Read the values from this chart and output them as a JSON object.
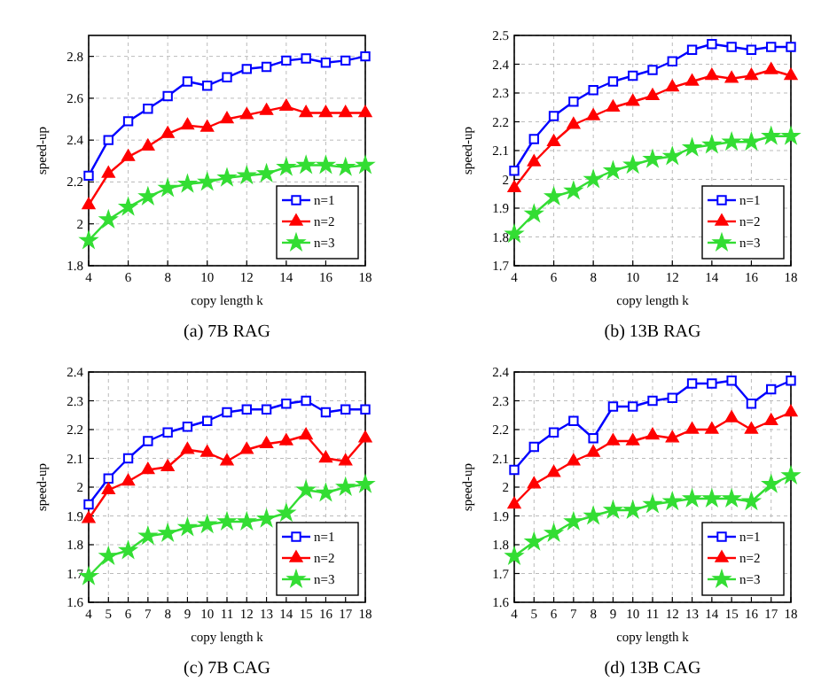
{
  "chart_data": [
    {
      "type": "line",
      "title": "(a) 7B RAG",
      "xlabel": "copy length k",
      "ylabel": "speed-up",
      "x": [
        4,
        5,
        6,
        7,
        8,
        9,
        10,
        11,
        12,
        13,
        14,
        15,
        16,
        17,
        18
      ],
      "xlim": [
        4,
        18
      ],
      "xticks": [
        4,
        6,
        8,
        10,
        12,
        14,
        16,
        18
      ],
      "ylim": [
        1.8,
        2.9
      ],
      "yticks": [
        1.8,
        2,
        2.2,
        2.4,
        2.6,
        2.8
      ],
      "grid": true,
      "legend": "bottom right",
      "series": [
        {
          "name": "n=1",
          "color": "#0000ff",
          "marker": "square",
          "values": [
            2.23,
            2.4,
            2.49,
            2.55,
            2.61,
            2.68,
            2.66,
            2.7,
            2.74,
            2.75,
            2.78,
            2.79,
            2.77,
            2.78,
            2.8
          ]
        },
        {
          "name": "n=2",
          "color": "#ff0000",
          "marker": "triangle",
          "values": [
            2.09,
            2.24,
            2.32,
            2.37,
            2.43,
            2.47,
            2.46,
            2.5,
            2.52,
            2.54,
            2.56,
            2.53,
            2.53,
            2.53,
            2.53
          ]
        },
        {
          "name": "n=3",
          "color": "#33dd33",
          "marker": "star",
          "values": [
            1.92,
            2.02,
            2.08,
            2.13,
            2.17,
            2.19,
            2.2,
            2.22,
            2.23,
            2.24,
            2.27,
            2.28,
            2.28,
            2.27,
            2.28
          ]
        }
      ]
    },
    {
      "type": "line",
      "title": "(b) 13B RAG",
      "xlabel": "copy length k",
      "ylabel": "speed-up",
      "x": [
        4,
        5,
        6,
        7,
        8,
        9,
        10,
        11,
        12,
        13,
        14,
        15,
        16,
        17,
        18
      ],
      "xlim": [
        4,
        18
      ],
      "xticks": [
        4,
        6,
        8,
        10,
        12,
        14,
        16,
        18
      ],
      "ylim": [
        1.7,
        2.5
      ],
      "yticks": [
        1.7,
        1.8,
        1.9,
        2,
        2.1,
        2.2,
        2.3,
        2.4,
        2.5
      ],
      "grid": true,
      "legend": "bottom right",
      "series": [
        {
          "name": "n=1",
          "color": "#0000ff",
          "marker": "square",
          "values": [
            2.03,
            2.14,
            2.22,
            2.27,
            2.31,
            2.34,
            2.36,
            2.38,
            2.41,
            2.45,
            2.47,
            2.46,
            2.45,
            2.46,
            2.46
          ]
        },
        {
          "name": "n=2",
          "color": "#ff0000",
          "marker": "triangle",
          "values": [
            1.97,
            2.06,
            2.13,
            2.19,
            2.22,
            2.25,
            2.27,
            2.29,
            2.32,
            2.34,
            2.36,
            2.35,
            2.36,
            2.38,
            2.36
          ]
        },
        {
          "name": "n=3",
          "color": "#33dd33",
          "marker": "star",
          "values": [
            1.81,
            1.88,
            1.94,
            1.96,
            2.0,
            2.03,
            2.05,
            2.07,
            2.08,
            2.11,
            2.12,
            2.13,
            2.13,
            2.15,
            2.15
          ]
        }
      ]
    },
    {
      "type": "line",
      "title": "(c) 7B CAG",
      "xlabel": "copy length k",
      "ylabel": "speed-up",
      "x": [
        4,
        5,
        6,
        7,
        8,
        9,
        10,
        11,
        12,
        13,
        14,
        15,
        16,
        17,
        18
      ],
      "xlim": [
        4,
        18
      ],
      "xticks": [
        4,
        5,
        6,
        7,
        8,
        9,
        10,
        11,
        12,
        13,
        14,
        15,
        16,
        17,
        18
      ],
      "ylim": [
        1.6,
        2.4
      ],
      "yticks": [
        1.6,
        1.7,
        1.8,
        1.9,
        2,
        2.1,
        2.2,
        2.3,
        2.4
      ],
      "grid": true,
      "legend": "bottom right",
      "series": [
        {
          "name": "n=1",
          "color": "#0000ff",
          "marker": "square",
          "values": [
            1.94,
            2.03,
            2.1,
            2.16,
            2.19,
            2.21,
            2.23,
            2.26,
            2.27,
            2.27,
            2.29,
            2.3,
            2.26,
            2.27,
            2.27
          ]
        },
        {
          "name": "n=2",
          "color": "#ff0000",
          "marker": "triangle",
          "values": [
            1.89,
            1.99,
            2.02,
            2.06,
            2.07,
            2.13,
            2.12,
            2.09,
            2.13,
            2.15,
            2.16,
            2.18,
            2.1,
            2.09,
            2.17
          ]
        },
        {
          "name": "n=3",
          "color": "#33dd33",
          "marker": "star",
          "values": [
            1.69,
            1.76,
            1.78,
            1.83,
            1.84,
            1.86,
            1.87,
            1.88,
            1.88,
            1.89,
            1.91,
            1.99,
            1.98,
            2.0,
            2.01
          ]
        }
      ]
    },
    {
      "type": "line",
      "title": "(d) 13B CAG",
      "xlabel": "copy length k",
      "ylabel": "speed-up",
      "x": [
        4,
        5,
        6,
        7,
        8,
        9,
        10,
        11,
        12,
        13,
        14,
        15,
        16,
        17,
        18
      ],
      "xlim": [
        4,
        18
      ],
      "xticks": [
        4,
        5,
        6,
        7,
        8,
        9,
        10,
        11,
        12,
        13,
        14,
        15,
        16,
        17,
        18
      ],
      "ylim": [
        1.6,
        2.4
      ],
      "yticks": [
        1.6,
        1.7,
        1.8,
        1.9,
        2,
        2.1,
        2.2,
        2.3,
        2.4
      ],
      "grid": true,
      "legend": "bottom right",
      "series": [
        {
          "name": "n=1",
          "color": "#0000ff",
          "marker": "square",
          "values": [
            2.06,
            2.14,
            2.19,
            2.23,
            2.17,
            2.28,
            2.28,
            2.3,
            2.31,
            2.36,
            2.36,
            2.37,
            2.29,
            2.34,
            2.37
          ]
        },
        {
          "name": "n=2",
          "color": "#ff0000",
          "marker": "triangle",
          "values": [
            1.94,
            2.01,
            2.05,
            2.09,
            2.12,
            2.16,
            2.16,
            2.18,
            2.17,
            2.2,
            2.2,
            2.24,
            2.2,
            2.23,
            2.26
          ]
        },
        {
          "name": "n=3",
          "color": "#33dd33",
          "marker": "star",
          "values": [
            1.76,
            1.81,
            1.84,
            1.88,
            1.9,
            1.92,
            1.92,
            1.94,
            1.95,
            1.96,
            1.96,
            1.96,
            1.95,
            2.01,
            2.04
          ]
        }
      ]
    }
  ]
}
